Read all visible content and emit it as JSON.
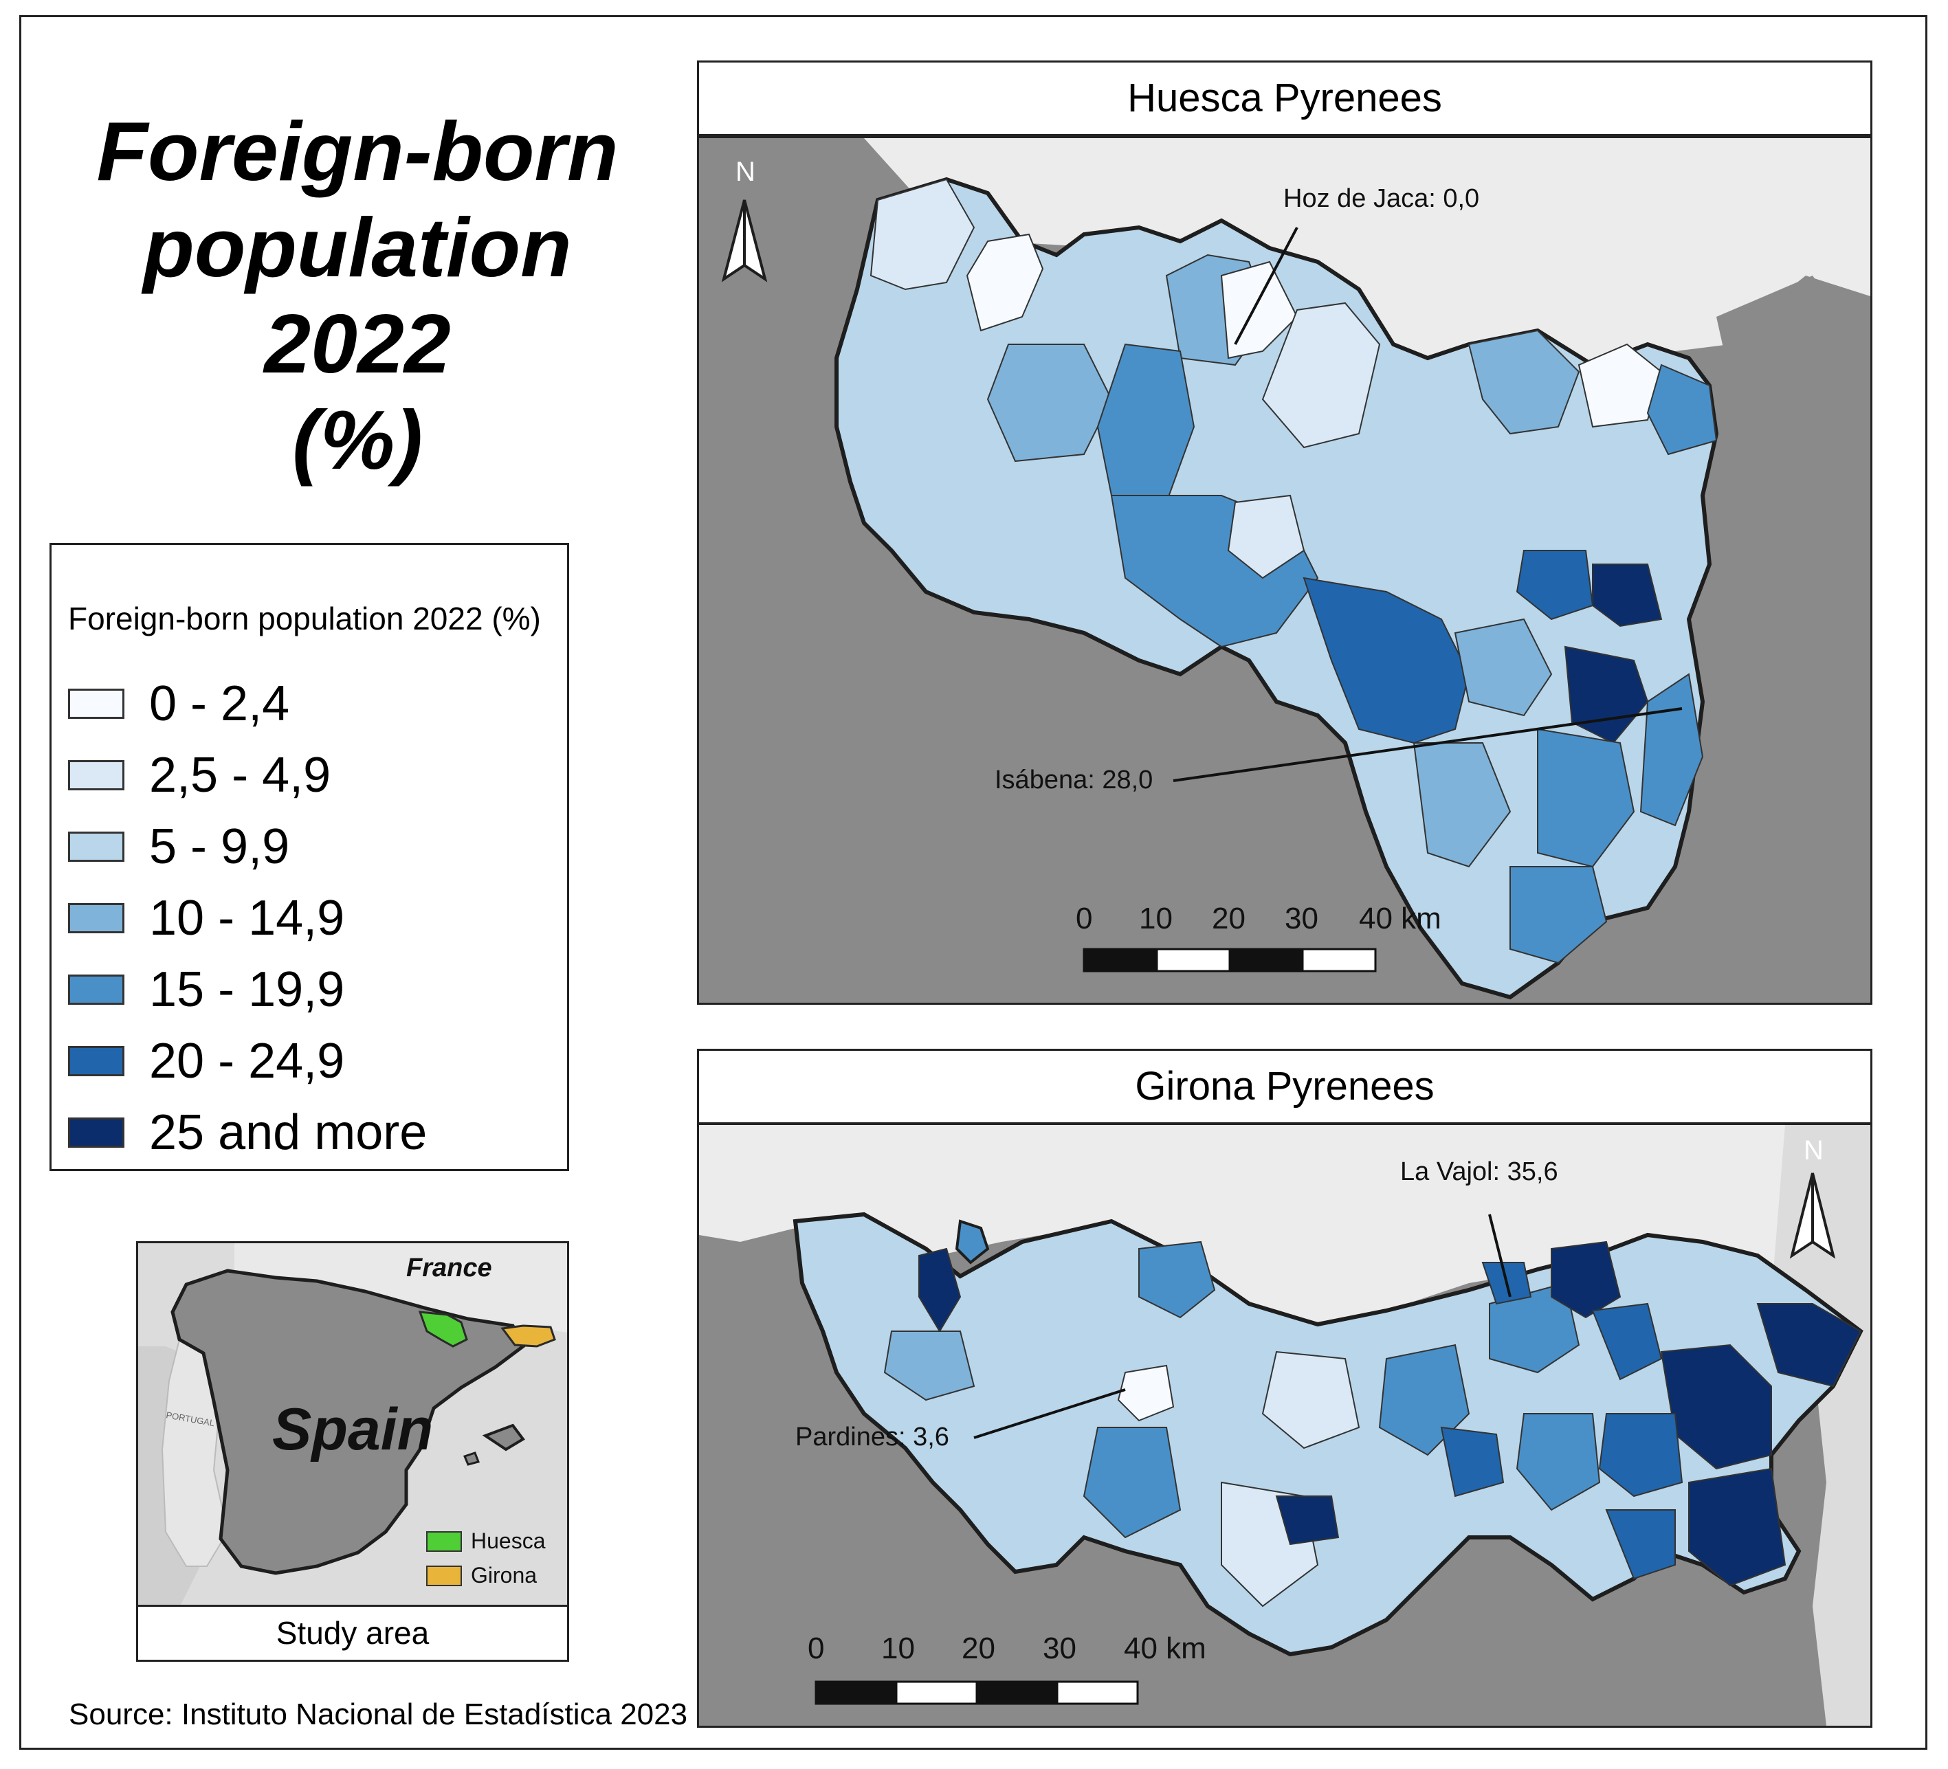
{
  "title": {
    "line1": "Foreign-born",
    "line2": "population 2022",
    "line3": "(%)"
  },
  "legend": {
    "title": "Foreign-born population 2022 (%)",
    "classes": [
      {
        "label": "0 - 2,4",
        "color": "#f7fbff"
      },
      {
        "label": "2,5 - 4,9",
        "color": "#dbe9f6"
      },
      {
        "label": "5 - 9,9",
        "color": "#b9d6ea"
      },
      {
        "label": "10 - 14,9",
        "color": "#7fb3d9"
      },
      {
        "label": "15 - 19,9",
        "color": "#4a90c8"
      },
      {
        "label": "20 - 24,9",
        "color": "#2166ac"
      },
      {
        "label": "25 and more",
        "color": "#0b2d6b"
      }
    ]
  },
  "inset": {
    "country_label": "Spain",
    "neighbor_label": "France",
    "portugal_label": "PORTUGAL",
    "legend_huesca": "Huesca",
    "legend_girona": "Girona",
    "color_huesca": "#4fce36",
    "color_girona": "#e8b53a",
    "caption": "Study area"
  },
  "source": "Source: Instituto Nacional de Estadística 2023",
  "huesca": {
    "title": "Huesca Pyrenees",
    "north_label": "N",
    "annotations": [
      {
        "text": "Hoz de Jaca: 0,0"
      },
      {
        "text": "Isábena: 28,0"
      }
    ],
    "scale": {
      "ticks": [
        "0",
        "10",
        "20",
        "30",
        "40 km"
      ]
    }
  },
  "girona": {
    "title": "Girona Pyrenees",
    "north_label": "N",
    "annotations": [
      {
        "text": "La Vajol: 35,6"
      },
      {
        "text": "Pardines: 3,6"
      }
    ],
    "scale": {
      "ticks": [
        "0",
        "10",
        "20",
        "30",
        "40 km"
      ]
    }
  },
  "colors": {
    "land_outside": "#8a8a8a",
    "france_bg": "#ececec",
    "border_line": "#1e1e1e"
  }
}
